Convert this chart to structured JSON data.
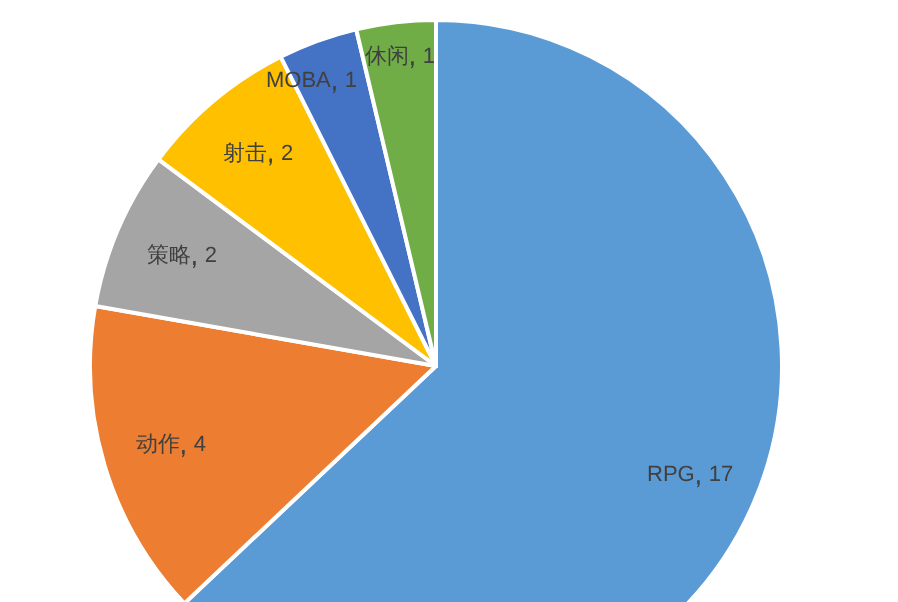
{
  "chart_data": {
    "type": "pie",
    "categories": [
      "RPG",
      "动作",
      "策略",
      "射击",
      "MOBA",
      "休闲"
    ],
    "values": [
      17,
      4,
      2,
      2,
      1,
      1
    ],
    "colors": [
      "#5b9bd5",
      "#ed7d31",
      "#a5a5a5",
      "#ffc000",
      "#4472c4",
      "#70ad47"
    ],
    "data_labels": true,
    "legend": false
  }
}
